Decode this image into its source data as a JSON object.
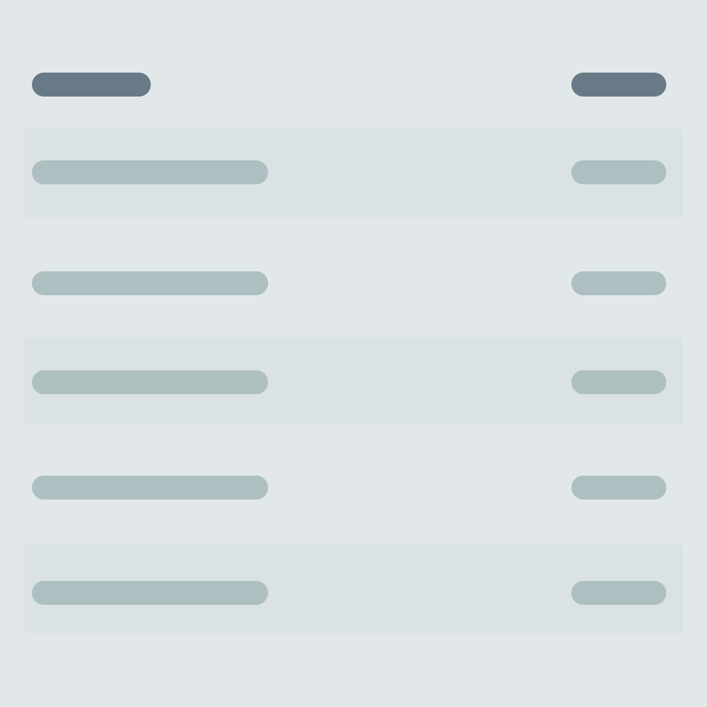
{
  "colors": {
    "background": "#e2e8e9",
    "header_placeholder": "#677a86",
    "row_placeholder": "#adbfc1",
    "row_placeholder_alt": "#aebfbf",
    "row_stripe": "#dae2e4"
  },
  "table": {
    "header": {
      "left_label": "",
      "right_label": ""
    },
    "rows": [
      {
        "label": "",
        "value": "",
        "striped": true
      },
      {
        "label": "",
        "value": "",
        "striped": false
      },
      {
        "label": "",
        "value": "",
        "striped": true
      },
      {
        "label": "",
        "value": "",
        "striped": false
      },
      {
        "label": "",
        "value": "",
        "striped": true
      }
    ]
  }
}
